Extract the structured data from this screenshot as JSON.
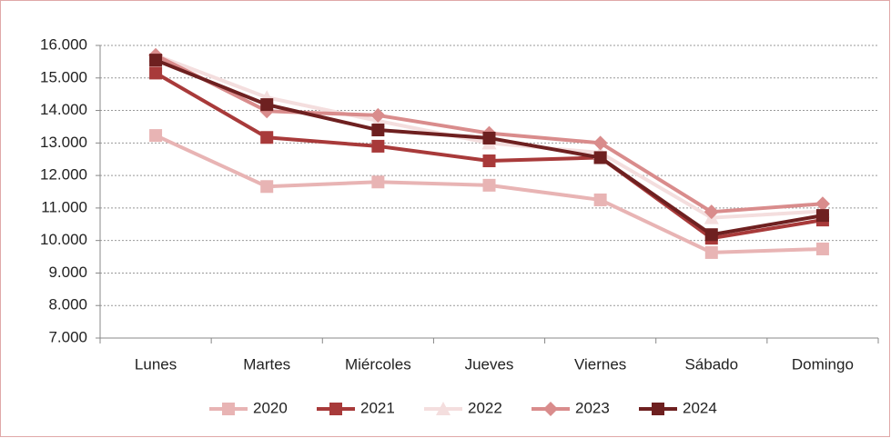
{
  "chart_data": {
    "type": "line",
    "categories": [
      "Lunes",
      "Martes",
      "Miércoles",
      "Jueves",
      "Viernes",
      "Sábado",
      "Domingo"
    ],
    "series": [
      {
        "name": "2020",
        "color": "#e8b4b4",
        "marker": "square",
        "values": [
          13230,
          11660,
          11800,
          11700,
          11250,
          9630,
          9740
        ]
      },
      {
        "name": "2021",
        "color": "#a83a3a",
        "marker": "square",
        "values": [
          15150,
          13170,
          12900,
          12450,
          12550,
          10070,
          10630
        ]
      },
      {
        "name": "2022",
        "color": "#f4dede",
        "marker": "triangle",
        "values": [
          15700,
          14400,
          13680,
          13000,
          12700,
          10700,
          10900
        ]
      },
      {
        "name": "2023",
        "color": "#d98c8c",
        "marker": "diamond",
        "values": [
          15700,
          13980,
          13850,
          13300,
          13000,
          10880,
          11130
        ]
      },
      {
        "name": "2024",
        "color": "#6e2020",
        "marker": "square",
        "values": [
          15550,
          14180,
          13400,
          13150,
          12550,
          10180,
          10770
        ]
      }
    ],
    "ylim": [
      7000,
      16000
    ],
    "yticks": [
      {
        "value": 7000,
        "label": "7.000"
      },
      {
        "value": 8000,
        "label": "8.000"
      },
      {
        "value": 9000,
        "label": "9.000"
      },
      {
        "value": 10000,
        "label": "10.000"
      },
      {
        "value": 11000,
        "label": "11.000"
      },
      {
        "value": 12000,
        "label": "12.000"
      },
      {
        "value": 13000,
        "label": "13.000"
      },
      {
        "value": 14000,
        "label": "14.000"
      },
      {
        "value": 15000,
        "label": "15.000"
      },
      {
        "value": 16000,
        "label": "16.000"
      }
    ],
    "grid": true,
    "legend": "bottom"
  }
}
